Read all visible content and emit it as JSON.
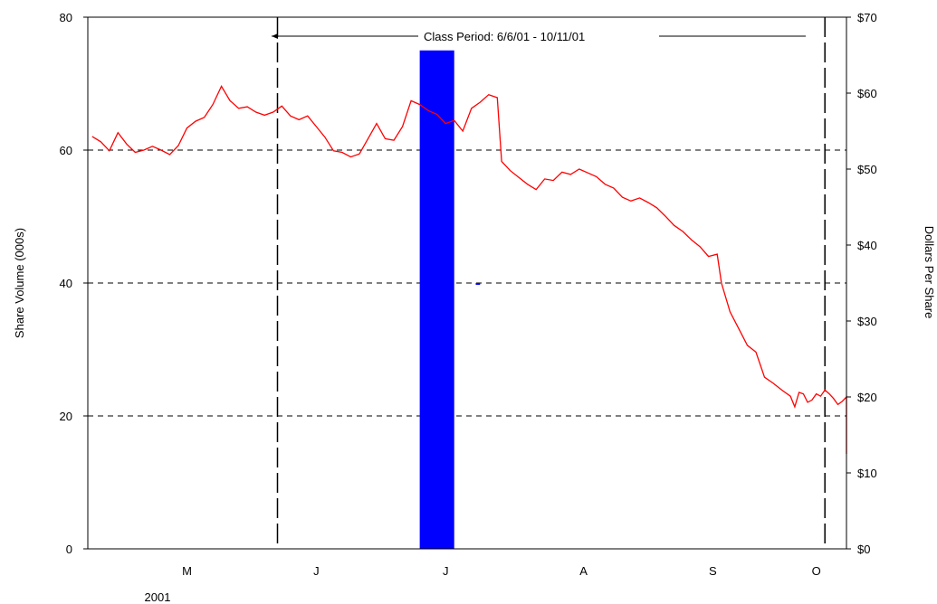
{
  "chart_data": {
    "type": "line",
    "title": "",
    "ylabel_left": "Share Volume (000s)",
    "ylabel_right": "Dollars Per Share",
    "ylim_left": [
      0,
      80
    ],
    "ylim_right": [
      0,
      70
    ],
    "yticks_left": [
      "0",
      "20",
      "40",
      "60",
      "80"
    ],
    "yticks_right": [
      "$0",
      "$10",
      "$20",
      "$30",
      "$40",
      "$50",
      "$60",
      "$70"
    ],
    "month_labels": [
      "M",
      "J",
      "J",
      "A",
      "S",
      "O"
    ],
    "year_label": "2001",
    "xlim": [
      "2001-04-23",
      "2001-10-16"
    ],
    "month_label_dates": [
      "2001-05-16",
      "2001-06-15",
      "2001-07-15",
      "2001-08-16",
      "2001-09-15",
      "2001-10-09"
    ],
    "gridlines": {
      "horizontal_left": [
        20,
        40,
        60
      ],
      "style": "dashed"
    },
    "class_period": {
      "label": "Class  Period: 6/6/01 - 10/11/01",
      "start": "2001-06-06",
      "end": "2001-10-11"
    },
    "bars": {
      "name": "Share Volume (000s)",
      "axis": "left",
      "color": "#0000ff",
      "points": [
        {
          "start": "2001-07-09",
          "end": "2001-07-17",
          "value": 75
        },
        {
          "start": "2001-07-22",
          "end": "2001-07-23",
          "value": 40
        }
      ]
    },
    "series": [
      {
        "name": "Dollars Per Share",
        "axis": "right",
        "color": "#ff0000",
        "points": [
          [
            "2001-04-24",
            54.3
          ],
          [
            "2001-04-26",
            53.6
          ],
          [
            "2001-04-28",
            52.4
          ],
          [
            "2001-04-30",
            54.8
          ],
          [
            "2001-05-02",
            53.3
          ],
          [
            "2001-05-04",
            52.2
          ],
          [
            "2001-05-06",
            52.5
          ],
          [
            "2001-05-08",
            53.0
          ],
          [
            "2001-05-10",
            52.5
          ],
          [
            "2001-05-12",
            51.9
          ],
          [
            "2001-05-14",
            53.1
          ],
          [
            "2001-05-16",
            55.4
          ],
          [
            "2001-05-18",
            56.3
          ],
          [
            "2001-05-20",
            56.8
          ],
          [
            "2001-05-22",
            58.5
          ],
          [
            "2001-05-24",
            60.9
          ],
          [
            "2001-05-26",
            59.0
          ],
          [
            "2001-05-28",
            58.0
          ],
          [
            "2001-05-30",
            58.2
          ],
          [
            "2001-06-01",
            57.5
          ],
          [
            "2001-06-03",
            57.1
          ],
          [
            "2001-06-05",
            57.5
          ],
          [
            "2001-06-07",
            58.3
          ],
          [
            "2001-06-09",
            57.0
          ],
          [
            "2001-06-11",
            56.5
          ],
          [
            "2001-06-13",
            57.0
          ],
          [
            "2001-06-15",
            55.6
          ],
          [
            "2001-06-17",
            54.2
          ],
          [
            "2001-06-19",
            52.4
          ],
          [
            "2001-06-21",
            52.2
          ],
          [
            "2001-06-23",
            51.6
          ],
          [
            "2001-06-25",
            52.0
          ],
          [
            "2001-06-27",
            54.0
          ],
          [
            "2001-06-29",
            56.0
          ],
          [
            "2001-07-01",
            54.0
          ],
          [
            "2001-07-03",
            53.8
          ],
          [
            "2001-07-05",
            55.6
          ],
          [
            "2001-07-07",
            59.0
          ],
          [
            "2001-07-09",
            58.5
          ],
          [
            "2001-07-11",
            57.7
          ],
          [
            "2001-07-13",
            57.2
          ],
          [
            "2001-07-15",
            56.0
          ],
          [
            "2001-07-17",
            56.4
          ],
          [
            "2001-07-19",
            55.0
          ],
          [
            "2001-07-21",
            58.0
          ],
          [
            "2001-07-23",
            58.8
          ],
          [
            "2001-07-25",
            59.8
          ],
          [
            "2001-07-27",
            59.4
          ],
          [
            "2001-07-28",
            51.0
          ],
          [
            "2001-07-30",
            49.8
          ],
          [
            "2001-08-01",
            48.9
          ],
          [
            "2001-08-03",
            48.0
          ],
          [
            "2001-08-05",
            47.3
          ],
          [
            "2001-08-07",
            48.7
          ],
          [
            "2001-08-09",
            48.5
          ],
          [
            "2001-08-11",
            49.6
          ],
          [
            "2001-08-13",
            49.3
          ],
          [
            "2001-08-15",
            50.0
          ],
          [
            "2001-08-17",
            49.5
          ],
          [
            "2001-08-19",
            49.0
          ],
          [
            "2001-08-21",
            48.0
          ],
          [
            "2001-08-23",
            47.5
          ],
          [
            "2001-08-25",
            46.3
          ],
          [
            "2001-08-27",
            45.8
          ],
          [
            "2001-08-29",
            46.2
          ],
          [
            "2001-08-31",
            45.6
          ],
          [
            "2001-09-02",
            44.9
          ],
          [
            "2001-09-04",
            43.8
          ],
          [
            "2001-09-06",
            42.6
          ],
          [
            "2001-09-08",
            41.8
          ],
          [
            "2001-09-10",
            40.7
          ],
          [
            "2001-09-12",
            39.8
          ],
          [
            "2001-09-14",
            38.5
          ],
          [
            "2001-09-16",
            38.8
          ],
          [
            "2001-09-17",
            35.0
          ],
          [
            "2001-09-19",
            31.2
          ],
          [
            "2001-09-21",
            29.0
          ],
          [
            "2001-09-23",
            26.8
          ],
          [
            "2001-09-25",
            25.9
          ],
          [
            "2001-09-27",
            22.6
          ],
          [
            "2001-09-29",
            21.8
          ],
          [
            "2001-10-01",
            20.9
          ],
          [
            "2001-10-03",
            20.1
          ],
          [
            "2001-10-04",
            18.7
          ],
          [
            "2001-10-05",
            20.6
          ],
          [
            "2001-10-06",
            20.4
          ],
          [
            "2001-10-07",
            19.3
          ],
          [
            "2001-10-08",
            19.6
          ],
          [
            "2001-10-09",
            20.4
          ],
          [
            "2001-10-10",
            20.1
          ],
          [
            "2001-10-11",
            20.9
          ],
          [
            "2001-10-12",
            20.4
          ],
          [
            "2001-10-13",
            19.8
          ],
          [
            "2001-10-14",
            19.0
          ],
          [
            "2001-10-15",
            19.4
          ],
          [
            "2001-10-16",
            20.0
          ],
          [
            "2001-10-16",
            13.4
          ],
          [
            "2001-10-16",
            12.5
          ]
        ]
      }
    ]
  }
}
